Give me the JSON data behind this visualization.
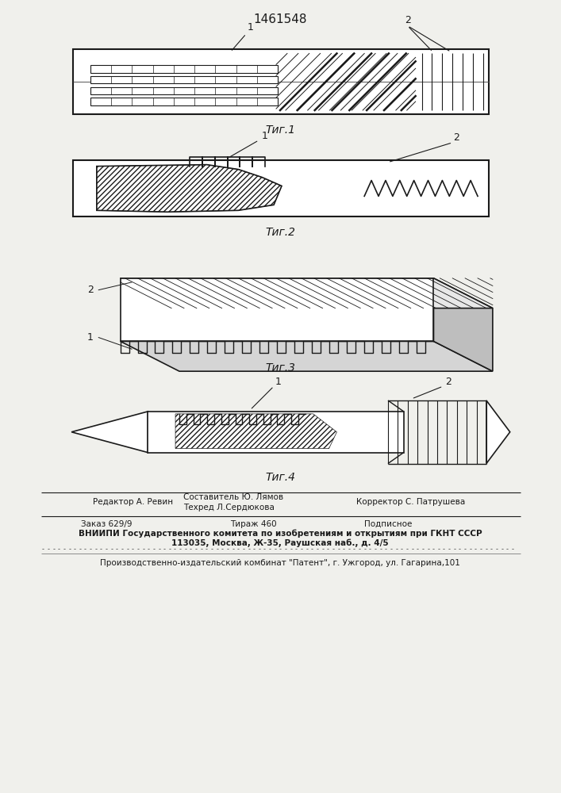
{
  "title": "1461548",
  "fig1_label": "Τиг.1",
  "fig2_label": "Τиг.2",
  "fig3_label": "Τиг.3",
  "fig4_label": "Τиг.4",
  "footer_line2": "ВНИИПИ Государственного комитета по изобретениям и открытиям при ГКНТ СССР",
  "footer_line3": "113035, Москва, Ж-35, Раушская наб., д. 4/5",
  "footer_line4": "Производственно-издательский комбинат \"Патент\", г. Ужгород, ул. Гагарина,101",
  "bg_color": "#f0f0ec",
  "line_color": "#1a1a1a"
}
